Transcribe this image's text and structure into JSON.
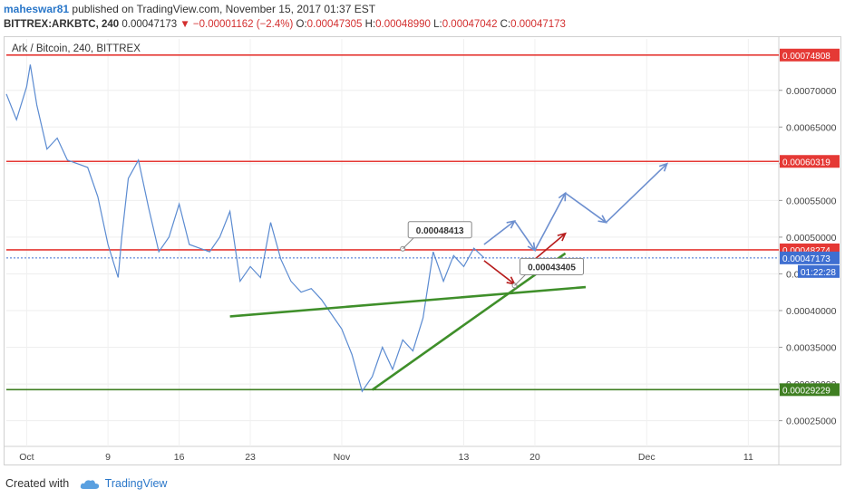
{
  "header": {
    "author": "maheswar81",
    "published": "published on TradingView.com, November 15, 2017 01:37 EST"
  },
  "symbol_line": {
    "symbol": "BITTREX:ARKBTC, 240",
    "last": "0.00047173",
    "change": "−0.00001162 (−2.4%)",
    "o_label": "O:",
    "o_value": "0.00047305",
    "h_label": "H:",
    "h_value": "0.00048990",
    "l_label": "L:",
    "l_value": "0.00047042",
    "c_label": "C:",
    "c_value": "0.00047173"
  },
  "footer": {
    "created_with": "Created with",
    "brand": "TradingView"
  },
  "colors": {
    "price_line": "#5b8bd1",
    "resistance": "#e53935",
    "support": "#3f7f22",
    "trend": "#3f8f2a",
    "projection": "#6d8fcf",
    "down_arrow": "#b71c1c",
    "last_badge": "#3f6fd1",
    "time_badge": "#3f6fd1"
  },
  "chart_data": {
    "type": "line",
    "legend": "Ark / Bitcoin, 240, BITTREX",
    "x_ticks": [
      {
        "label": "Oct",
        "date": "2017-10-01"
      },
      {
        "label": "9",
        "date": "2017-10-09"
      },
      {
        "label": "16",
        "date": "2017-10-16"
      },
      {
        "label": "23",
        "date": "2017-10-23"
      },
      {
        "label": "Nov",
        "date": "2017-11-01"
      },
      {
        "label": "13",
        "date": "2017-11-13"
      },
      {
        "label": "20",
        "date": "2017-11-20"
      },
      {
        "label": "Dec",
        "date": "2017-12-01"
      },
      {
        "label": "11",
        "date": "2017-12-11"
      }
    ],
    "y_ticks": [
      0.00025,
      0.0003,
      0.00035,
      0.0004,
      0.00045,
      0.0005,
      0.00055,
      0.0006,
      0.00065,
      0.0007
    ],
    "y_tick_labels": [
      "0.00025000",
      "0.00030000",
      "0.00035000",
      "0.00040000",
      "0.00045000",
      "0.00050000",
      "0.00055000",
      "0.00060000",
      "0.00065000",
      "0.00070000"
    ],
    "ylim": [
      0.000215,
      0.00077
    ],
    "xlim": [
      "2017-09-29",
      "2017-12-14"
    ],
    "series": [
      {
        "values": [
          [
            "2017-09-29",
            0.000695
          ],
          [
            "2017-09-30",
            0.00066
          ],
          [
            "2017-10-01",
            0.000705
          ],
          [
            "2017-10-01",
            0.000735
          ],
          [
            "2017-10-02",
            0.00068
          ],
          [
            "2017-10-03",
            0.00062
          ],
          [
            "2017-10-04",
            0.000635
          ],
          [
            "2017-10-05",
            0.000605
          ],
          [
            "2017-10-06",
            0.0006
          ],
          [
            "2017-10-07",
            0.000595
          ],
          [
            "2017-10-08",
            0.000555
          ],
          [
            "2017-10-09",
            0.00049
          ],
          [
            "2017-10-10",
            0.000445
          ],
          [
            "2017-10-10",
            0.0005
          ],
          [
            "2017-10-11",
            0.00058
          ],
          [
            "2017-10-12",
            0.000605
          ],
          [
            "2017-10-13",
            0.00054
          ],
          [
            "2017-10-14",
            0.00048
          ],
          [
            "2017-10-15",
            0.0005
          ],
          [
            "2017-10-16",
            0.000545
          ],
          [
            "2017-10-17",
            0.00049
          ],
          [
            "2017-10-18",
            0.000485
          ],
          [
            "2017-10-19",
            0.00048
          ],
          [
            "2017-10-20",
            0.0005
          ],
          [
            "2017-10-21",
            0.000535
          ],
          [
            "2017-10-22",
            0.00044
          ],
          [
            "2017-10-23",
            0.00046
          ],
          [
            "2017-10-24",
            0.000445
          ],
          [
            "2017-10-25",
            0.00052
          ],
          [
            "2017-10-26",
            0.00047
          ],
          [
            "2017-10-27",
            0.00044
          ],
          [
            "2017-10-28",
            0.000425
          ],
          [
            "2017-10-29",
            0.00043
          ],
          [
            "2017-10-30",
            0.000415
          ],
          [
            "2017-10-31",
            0.000395
          ],
          [
            "2017-11-01",
            0.000375
          ],
          [
            "2017-11-02",
            0.00034
          ],
          [
            "2017-11-03",
            0.00029
          ],
          [
            "2017-11-04",
            0.00031
          ],
          [
            "2017-11-05",
            0.00035
          ],
          [
            "2017-11-06",
            0.00032
          ],
          [
            "2017-11-07",
            0.00036
          ],
          [
            "2017-11-08",
            0.000345
          ],
          [
            "2017-11-09",
            0.00039
          ],
          [
            "2017-11-10",
            0.00048
          ],
          [
            "2017-11-11",
            0.00044
          ],
          [
            "2017-11-12",
            0.000475
          ],
          [
            "2017-11-13",
            0.00046
          ],
          [
            "2017-11-14",
            0.000485
          ],
          [
            "2017-11-15",
            0.00047173
          ]
        ]
      }
    ],
    "horizontal_levels": [
      {
        "value": 0.00074808,
        "label": "0.00074808",
        "kind": "resistance"
      },
      {
        "value": 0.00060319,
        "label": "0.00060319",
        "kind": "resistance"
      },
      {
        "value": 0.00048274,
        "label": "0.00048274",
        "kind": "resistance"
      },
      {
        "value": 0.00029229,
        "label": "0.00029229",
        "kind": "support"
      }
    ],
    "last_price": {
      "value": 0.00047173,
      "label": "0.00047173"
    },
    "countdown": "01:22:28",
    "trend_lines": [
      {
        "from": [
          "2017-10-21",
          0.000392
        ],
        "to": [
          "2017-11-25",
          0.000432
        ]
      },
      {
        "from": [
          "2017-11-04",
          0.000292
        ],
        "to": [
          "2017-11-23",
          0.000478
        ]
      }
    ],
    "callouts": [
      {
        "text": "0.00048413",
        "date": "2017-11-07",
        "value": 0.00048413
      },
      {
        "text": "0.00043405",
        "date": "2017-11-18",
        "value": 0.00043405
      }
    ],
    "projection_path": [
      [
        "2017-11-15",
        0.00049
      ],
      [
        "2017-11-18",
        0.000522
      ],
      [
        "2017-11-20",
        0.000482
      ],
      [
        "2017-11-23",
        0.00056
      ],
      [
        "2017-11-27",
        0.00052
      ],
      [
        "2017-12-03",
        0.0006
      ]
    ],
    "down_arrow": [
      [
        "2017-11-15",
        0.000468
      ],
      [
        "2017-11-18",
        0.000436
      ]
    ],
    "up_arrow": [
      [
        "2017-11-20",
        0.00047
      ],
      [
        "2017-11-23",
        0.000505
      ]
    ]
  }
}
